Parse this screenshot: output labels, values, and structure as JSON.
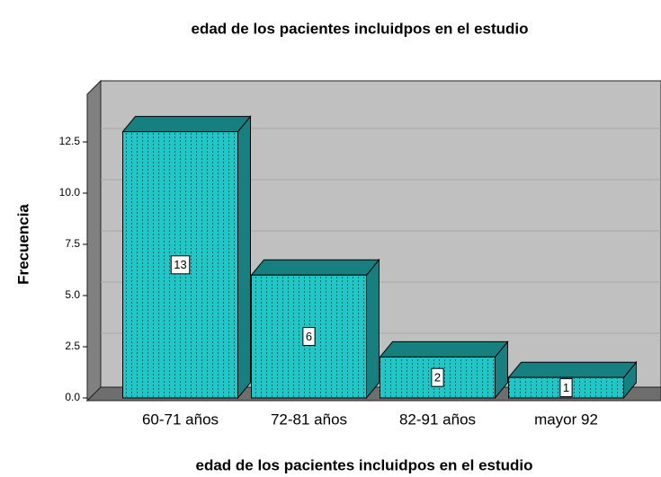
{
  "chart_data": {
    "type": "bar3d",
    "title": "edad de los pacientes incluidpos en el estudio",
    "x_label": "edad de los pacientes incluidpos en el estudio",
    "y_label": "Frecuencia",
    "categories": [
      "60-71 años",
      "72-81 años",
      "82-91 años",
      "mayor 92"
    ],
    "values": [
      13,
      6,
      2,
      1
    ],
    "color": "#1fc8c8",
    "ylim": [
      0,
      15
    ],
    "yticks": [
      {
        "value": 0,
        "label": "0.0"
      },
      2.5,
      {
        "value": 5,
        "label": "5.0"
      },
      7.5,
      {
        "value": 10,
        "label": "10.0"
      },
      12.5
    ],
    "grid": true
  }
}
